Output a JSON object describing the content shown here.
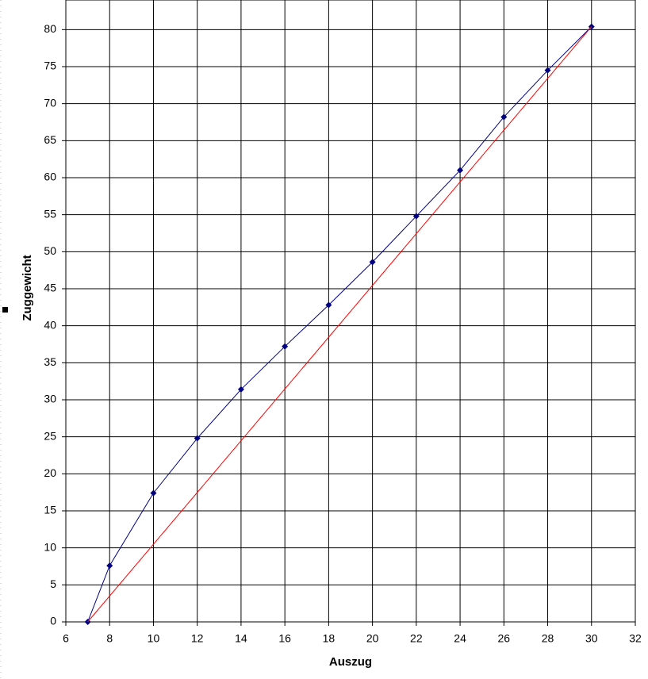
{
  "chart_data": {
    "type": "line",
    "x_label": "Auszug",
    "y_label": "Zuggewicht",
    "series": [
      {
        "color": "#000080",
        "marker": "diamond",
        "x": [
          7,
          8,
          10,
          12,
          14,
          16,
          18,
          20,
          22,
          24,
          26,
          28,
          30
        ],
        "values": [
          0,
          7.6,
          17.4,
          24.8,
          31.4,
          37.2,
          42.8,
          48.6,
          54.8,
          61,
          68.2,
          74.5,
          80.4
        ]
      },
      {
        "color": "#ff0000",
        "marker": "none",
        "x": [
          7,
          30
        ],
        "values": [
          0,
          80.4
        ]
      }
    ],
    "xlim": [
      6,
      32
    ],
    "xticks": [
      6,
      8,
      10,
      12,
      14,
      16,
      18,
      20,
      22,
      24,
      26,
      28,
      30,
      32
    ],
    "ylim": [
      0,
      84
    ],
    "yticks": [
      0,
      5,
      10,
      15,
      20,
      25,
      30,
      35,
      40,
      45,
      50,
      55,
      60,
      65,
      70,
      75,
      80
    ],
    "grid": true
  }
}
